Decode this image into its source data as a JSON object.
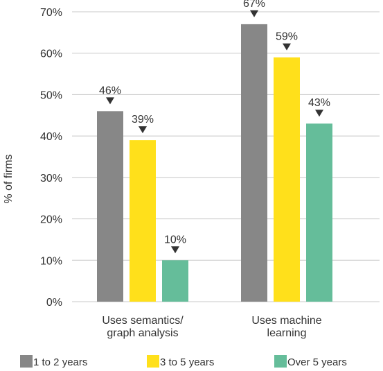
{
  "chart_data": {
    "type": "bar",
    "title": "",
    "xlabel": "",
    "ylabel": "% of firms",
    "ylim": [
      0,
      70
    ],
    "yticks": [
      0,
      10,
      20,
      30,
      40,
      50,
      60,
      70
    ],
    "ytick_labels": [
      "0%",
      "10%",
      "20%",
      "30%",
      "40%",
      "50%",
      "60%",
      "70%"
    ],
    "categories": [
      {
        "lines": [
          "Uses semantics/",
          "graph analysis"
        ]
      },
      {
        "lines": [
          "Uses machine",
          "learning"
        ]
      }
    ],
    "series": [
      {
        "name": "1 to 2 years",
        "color": "#878787",
        "values": [
          46,
          67
        ],
        "labels": [
          "46%",
          "67%"
        ]
      },
      {
        "name": "3 to 5 years",
        "color": "#ffe01b",
        "values": [
          39,
          59
        ],
        "labels": [
          "39%",
          "59%"
        ]
      },
      {
        "name": "Over 5 years",
        "color": "#65bd9a",
        "values": [
          10,
          43
        ],
        "labels": [
          "10%",
          "43%"
        ]
      }
    ],
    "legend_position": "bottom",
    "grid": "horizontal"
  }
}
